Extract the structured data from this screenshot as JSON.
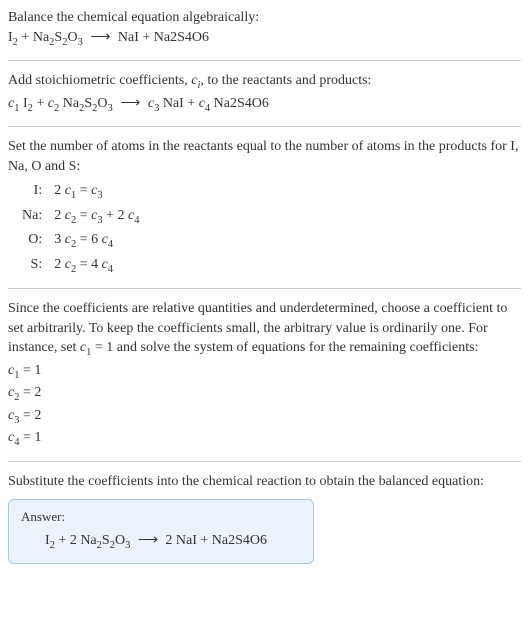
{
  "intro": {
    "line1": "Balance the chemical equation algebraically:",
    "eq_lhs1": "I",
    "eq_lhs1_sub": "2",
    "plus1": " + ",
    "eq_lhs2": "Na",
    "eq_lhs2_sub": "2",
    "eq_lhs3": "S",
    "eq_lhs3_sub": "2",
    "eq_lhs4": "O",
    "eq_lhs4_sub": "3",
    "arrow": "⟶",
    "eq_rhs1": "NaI + Na2S4O6"
  },
  "step1": {
    "text_a": "Add stoichiometric coefficients, ",
    "ci_c": "c",
    "ci_i": "i",
    "text_b": ", to the reactants and products:",
    "c1": "c",
    "c1s": "1",
    "sp1": " I",
    "sp1s": "2",
    "plus1": " + ",
    "c2": "c",
    "c2s": "2",
    "sp2": " Na",
    "sp2a_s": "2",
    "sp2b": "S",
    "sp2b_s": "2",
    "sp2c": "O",
    "sp2c_s": "3",
    "arrow": "⟶",
    "c3": "c",
    "c3s": "3",
    "sp3": " NaI + ",
    "c4": "c",
    "c4s": "4",
    "sp4": " Na2S4O6"
  },
  "step2": {
    "text": "Set the number of atoms in the reactants equal to the number of atoms in the products for I, Na, O and S:",
    "rows": [
      {
        "lbl": "I:",
        "eq_l": "2 ",
        "c_a": "c",
        "s_a": "1",
        "mid": " = ",
        "c_b": "c",
        "s_b": "3",
        "tail": ""
      },
      {
        "lbl": "Na:",
        "eq_l": "2 ",
        "c_a": "c",
        "s_a": "2",
        "mid": " = ",
        "c_b": "c",
        "s_b": "3",
        "tail_pre": " + 2 ",
        "c_c": "c",
        "s_c": "4"
      },
      {
        "lbl": "O:",
        "eq_l": "3 ",
        "c_a": "c",
        "s_a": "2",
        "mid": " = 6 ",
        "c_b": "c",
        "s_b": "4",
        "tail": ""
      },
      {
        "lbl": "S:",
        "eq_l": "2 ",
        "c_a": "c",
        "s_a": "2",
        "mid": " = 4 ",
        "c_b": "c",
        "s_b": "4",
        "tail": ""
      }
    ]
  },
  "step3": {
    "text_a": "Since the coefficients are relative quantities and underdetermined, choose a coefficient to set arbitrarily. To keep the coefficients small, the arbitrary value is ordinarily one. For instance, set ",
    "c": "c",
    "cs": "1",
    "text_b": " = 1 and solve the system of equations for the remaining coefficients:",
    "sol": [
      {
        "c": "c",
        "s": "1",
        "eq": " = 1"
      },
      {
        "c": "c",
        "s": "2",
        "eq": " = 2"
      },
      {
        "c": "c",
        "s": "3",
        "eq": " = 2"
      },
      {
        "c": "c",
        "s": "4",
        "eq": " = 1"
      }
    ]
  },
  "step4": {
    "text": "Substitute the coefficients into the chemical reaction to obtain the balanced equation:"
  },
  "answer": {
    "label": "Answer:",
    "l1": "I",
    "l1s": "2",
    "plus1": " + 2 Na",
    "l2s": "2",
    "l2b": "S",
    "l2bs": "2",
    "l2c": "O",
    "l2cs": "3",
    "arrow": "⟶",
    "r": " 2 NaI + Na2S4O6"
  },
  "colors": {
    "text": "#333333",
    "rule": "#cccccc",
    "answer_border": "#a6c8e6",
    "answer_bg": "#eaf3fb"
  },
  "typography": {
    "base_fontsize_pt": 11,
    "answer_label_fontsize_pt": 10
  }
}
